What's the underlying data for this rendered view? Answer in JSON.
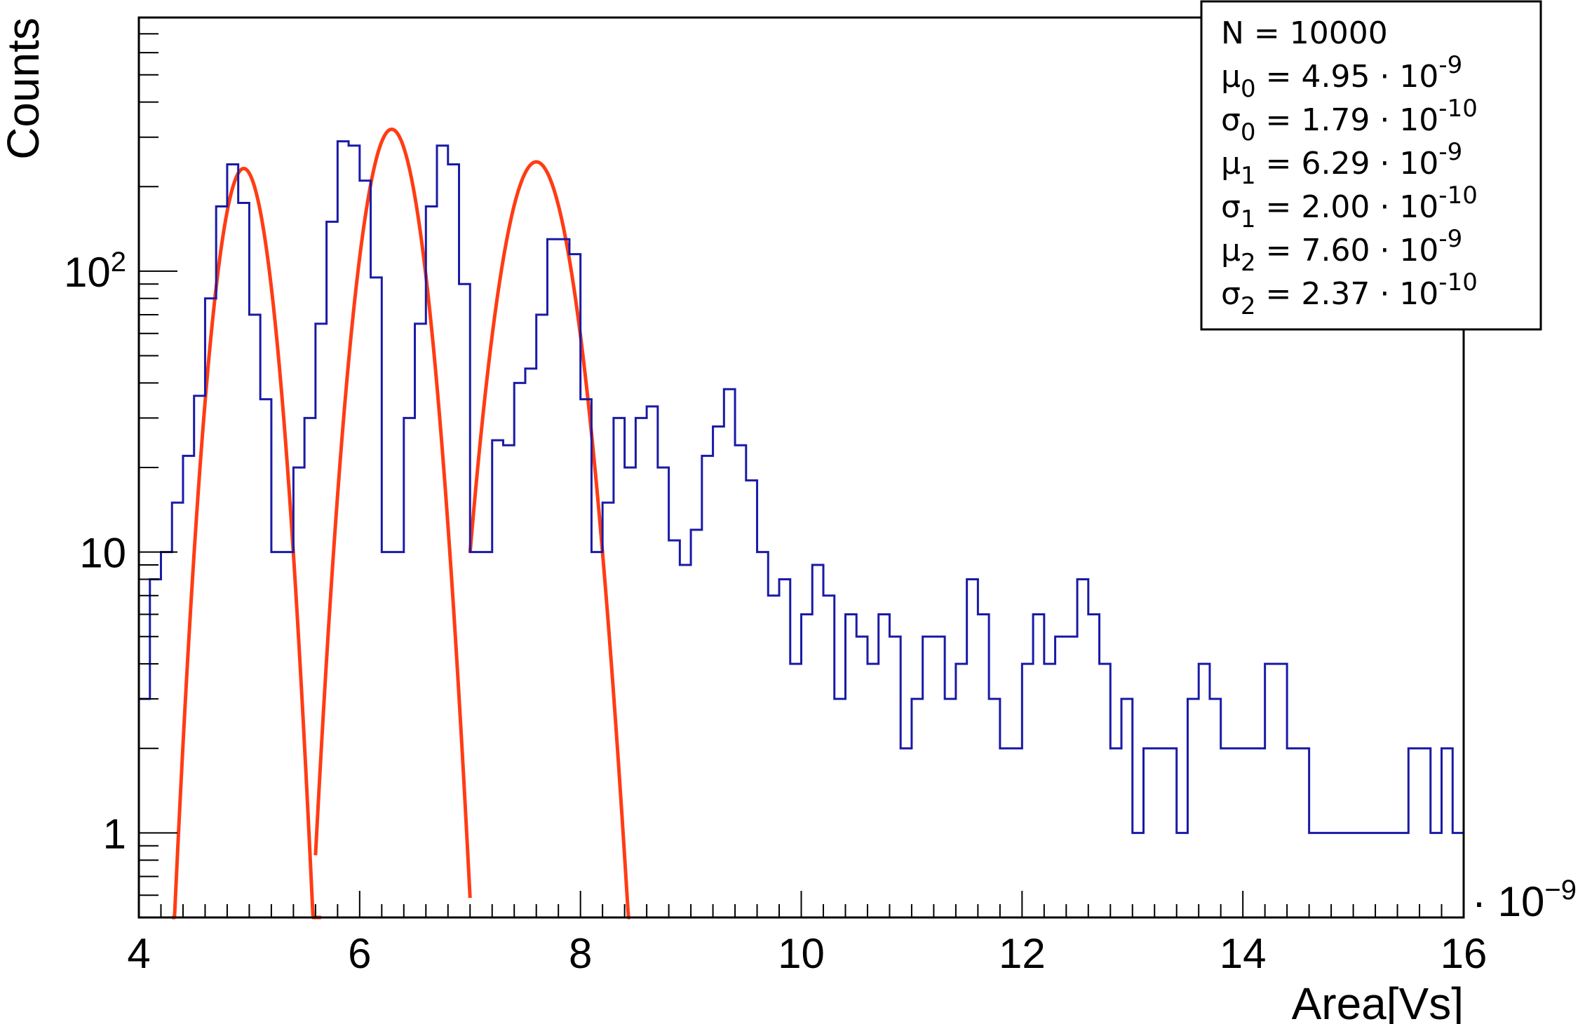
{
  "chart_data": {
    "type": "histogram",
    "xlabel": "Area[Vs]",
    "ylabel": "Counts",
    "x_multiplier": "· 10",
    "x_multiplier_exp": "−9",
    "xlim": [
      4,
      16
    ],
    "ylim": [
      0.5,
      800
    ],
    "yscale": "log",
    "x_ticks": [
      4,
      6,
      8,
      10,
      12,
      14,
      16
    ],
    "y_ticks": [
      {
        "value": 1,
        "label": "1"
      },
      {
        "value": 10,
        "label": "10"
      },
      {
        "value": 100,
        "label": "10",
        "sup": "2"
      }
    ],
    "bin_width": 0.1,
    "series": [
      {
        "name": "",
        "color": "#1a1aa6",
        "x": [
          4.05,
          4.15,
          4.25,
          4.35,
          4.45,
          4.55,
          4.65,
          4.75,
          4.85,
          4.95,
          5.05,
          5.15,
          5.25,
          5.35,
          5.45,
          5.55,
          5.65,
          5.75,
          5.85,
          5.95,
          6.05,
          6.15,
          6.25,
          6.35,
          6.45,
          6.55,
          6.65,
          6.75,
          6.85,
          6.95,
          7.05,
          7.15,
          7.25,
          7.35,
          7.45,
          7.55,
          7.65,
          7.75,
          7.85,
          7.95,
          8.05,
          8.15,
          8.25,
          8.35,
          8.45,
          8.55,
          8.65,
          8.75,
          8.85,
          8.95,
          9.05,
          9.15,
          9.25,
          9.35,
          9.45,
          9.55,
          9.65,
          9.75,
          9.85,
          9.95,
          10.05,
          10.15,
          10.25,
          10.35,
          10.45,
          10.55,
          10.65,
          10.75,
          10.85,
          10.95,
          11.05,
          11.15,
          11.25,
          11.35,
          11.45,
          11.55,
          11.65,
          11.75,
          11.85,
          11.95,
          12.05,
          12.15,
          12.25,
          12.35,
          12.45,
          12.55,
          12.65,
          12.75,
          12.85,
          12.95,
          13.05,
          13.15,
          13.25,
          13.35,
          13.45,
          13.55,
          13.65,
          13.75,
          13.85,
          13.95,
          14.05,
          14.15,
          14.25,
          14.35,
          14.45,
          14.55,
          14.65,
          14.75,
          14.85,
          14.95,
          15.05,
          15.15,
          15.25,
          15.35,
          15.45,
          15.55,
          15.65,
          15.75,
          15.85,
          15.95
        ],
        "values": [
          3,
          8,
          10,
          15,
          22,
          36,
          80,
          170,
          240,
          175,
          70,
          35,
          10,
          10,
          20,
          30,
          65,
          150,
          290,
          280,
          210,
          95,
          10,
          10,
          30,
          65,
          170,
          280,
          240,
          90,
          10,
          10,
          25,
          24,
          40,
          45,
          70,
          130,
          130,
          115,
          35,
          10,
          15,
          30,
          20,
          30,
          33,
          20,
          11,
          9,
          12,
          22,
          28,
          38,
          24,
          18,
          10,
          7,
          8,
          4,
          6,
          9,
          7,
          3,
          6,
          5,
          4,
          6,
          5,
          2,
          3,
          5,
          5,
          3,
          4,
          8,
          6,
          3,
          2,
          2,
          4,
          6,
          4,
          5,
          5,
          8,
          6,
          4,
          2,
          3,
          1,
          2,
          2,
          2,
          1,
          3,
          4,
          3,
          2,
          2,
          2,
          2,
          4,
          4,
          2,
          2,
          1,
          1,
          1,
          1,
          1,
          1,
          1,
          1,
          1,
          2,
          2,
          1,
          2,
          1
        ]
      }
    ],
    "fit_series": [
      {
        "name": "",
        "color": "#ff3c14",
        "mu": 4.95,
        "sigma": 0.179,
        "amplitude": 232,
        "x_range": [
          4.3,
          5.65
        ]
      },
      {
        "name": "",
        "color": "#ff3c14",
        "mu": 6.29,
        "sigma": 0.2,
        "amplitude": 320,
        "x_range": [
          5.6,
          7.0
        ]
      },
      {
        "name": "",
        "color": "#ff3c14",
        "mu": 7.6,
        "sigma": 0.237,
        "amplitude": 245,
        "x_range": [
          7.0,
          8.45
        ]
      }
    ],
    "stats_box": {
      "placement": "top-right",
      "lines": [
        {
          "sym": "N",
          "sub": "",
          "eq": " = 10000",
          "exp": ""
        },
        {
          "sym": "μ",
          "sub": "0",
          "eq": " = 4.95 · 10",
          "exp": "-9"
        },
        {
          "sym": "σ",
          "sub": "0",
          "eq": " = 1.79 · 10",
          "exp": "-10"
        },
        {
          "sym": "μ",
          "sub": "1",
          "eq": " = 6.29 · 10",
          "exp": "-9"
        },
        {
          "sym": "σ",
          "sub": "1",
          "eq": " = 2.00 · 10",
          "exp": "-10"
        },
        {
          "sym": "μ",
          "sub": "2",
          "eq": " = 7.60 · 10",
          "exp": "-9"
        },
        {
          "sym": "σ",
          "sub": "2",
          "eq": " = 2.37 · 10",
          "exp": "-10"
        }
      ]
    }
  }
}
